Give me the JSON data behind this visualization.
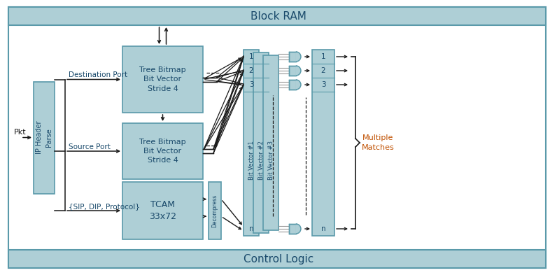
{
  "bg_color": "#ffffff",
  "block_fill": "#aecfd6",
  "block_edge": "#5a9aaa",
  "text_color_dark": "#1a4a6b",
  "text_color_orange": "#c05000",
  "line_color": "#1a1a1a",
  "gray_line": "#999999",
  "block_ram_label": "Block RAM",
  "control_logic_label": "Control Logic",
  "ip_header_label": "IP Header\nParse",
  "tree_bitmap1_label": "Tree Bitmap\nBit Vector\nStride 4",
  "tree_bitmap2_label": "Tree Bitmap\nBit Vector\nStride 4",
  "tcam_label": "TCAM\n33x72",
  "decompress_label": "Decompress",
  "dest_port_label": "Destination Port",
  "src_port_label": "Source Port",
  "sip_dip_label": "{SIP, DIP, Protocol}",
  "pkt_label": "Pkt",
  "bv1_label": "Bit Vector #1",
  "bv2_label": "Bit Vector #2",
  "bv3_label": "Bit Vector #3",
  "multiple_matches_label": "Multiple\nMatches",
  "fig_width": 7.96,
  "fig_height": 3.93,
  "dpi": 100
}
